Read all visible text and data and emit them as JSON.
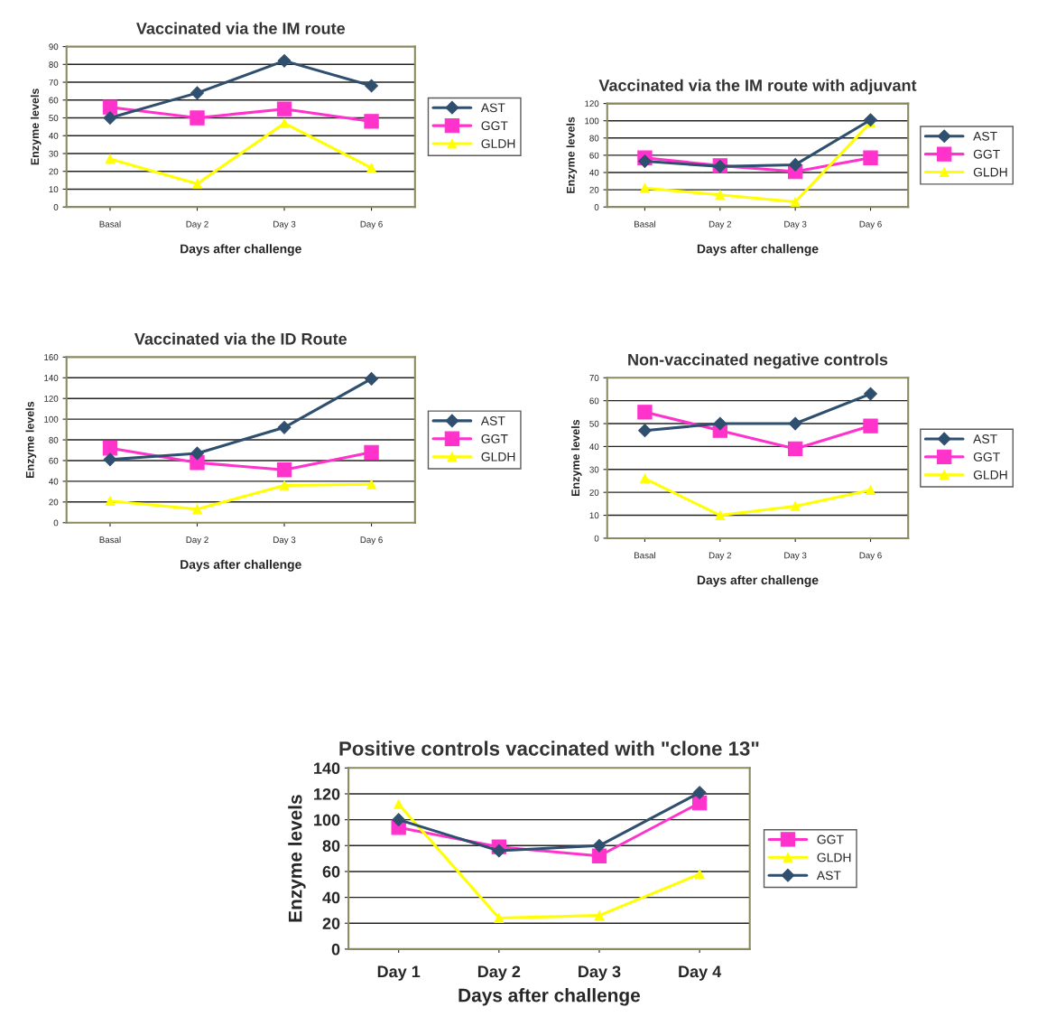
{
  "chart_data": [
    {
      "type": "line",
      "title": "Vaccinated via the IM route",
      "xlabel": "Days after challenge",
      "ylabel": "Enzyme levels",
      "categories": [
        "Basal",
        "Day 2",
        "Day 3",
        "Day 6"
      ],
      "ylim": [
        0,
        90
      ],
      "yticks": [
        0,
        10,
        20,
        30,
        40,
        50,
        60,
        70,
        80,
        90
      ],
      "grid": "y",
      "legend": "right",
      "series": [
        {
          "name": "AST",
          "color": "#2f4f6f",
          "marker": "diamond",
          "values": [
            50,
            64,
            82,
            68
          ]
        },
        {
          "name": "GGT",
          "color": "#ff33cc",
          "marker": "square",
          "values": [
            56,
            50,
            55,
            48
          ]
        },
        {
          "name": "GLDH",
          "color": "#ffff00",
          "marker": "triangle",
          "values": [
            27,
            13,
            47,
            22
          ]
        }
      ]
    },
    {
      "type": "line",
      "title": "Vaccinated via the IM route with adjuvant",
      "xlabel": "Days after challenge",
      "ylabel": "Enzyme levels",
      "categories": [
        "Basal",
        "Day 2",
        "Day 3",
        "Day 6"
      ],
      "ylim": [
        0,
        120
      ],
      "yticks": [
        0,
        20,
        40,
        60,
        80,
        100,
        120
      ],
      "grid": "y",
      "legend": "right",
      "series": [
        {
          "name": "AST",
          "color": "#2f4f6f",
          "marker": "diamond",
          "values": [
            53,
            47,
            49,
            101
          ]
        },
        {
          "name": "GGT",
          "color": "#ff33cc",
          "marker": "square",
          "values": [
            57,
            48,
            41,
            57
          ]
        },
        {
          "name": "GLDH",
          "color": "#ffff00",
          "marker": "triangle",
          "values": [
            22,
            14,
            6,
            98
          ]
        }
      ]
    },
    {
      "type": "line",
      "title": "Vaccinated via the ID Route",
      "xlabel": "Days after challenge",
      "ylabel": "Enzyme levels",
      "categories": [
        "Basal",
        "Day 2",
        "Day 3",
        "Day 6"
      ],
      "ylim": [
        0,
        160
      ],
      "yticks": [
        0,
        20,
        40,
        60,
        80,
        100,
        120,
        140,
        160
      ],
      "grid": "y",
      "legend": "right",
      "series": [
        {
          "name": "AST",
          "color": "#2f4f6f",
          "marker": "diamond",
          "values": [
            61,
            67,
            92,
            139
          ]
        },
        {
          "name": "GGT",
          "color": "#ff33cc",
          "marker": "square",
          "values": [
            72,
            58,
            51,
            68
          ]
        },
        {
          "name": "GLDH",
          "color": "#ffff00",
          "marker": "triangle",
          "values": [
            21,
            13,
            36,
            37
          ]
        }
      ]
    },
    {
      "type": "line",
      "title": "Non-vaccinated negative controls",
      "xlabel": "Days after challenge",
      "ylabel": "Enzyme levels",
      "categories": [
        "Basal",
        "Day 2",
        "Day 3",
        "Day 6"
      ],
      "ylim": [
        0,
        70
      ],
      "yticks": [
        0,
        10,
        20,
        30,
        40,
        50,
        60,
        70
      ],
      "grid": "y",
      "legend": "right",
      "series": [
        {
          "name": "AST",
          "color": "#2f4f6f",
          "marker": "diamond",
          "values": [
            47,
            50,
            50,
            63
          ]
        },
        {
          "name": "GGT",
          "color": "#ff33cc",
          "marker": "square",
          "values": [
            55,
            47,
            39,
            49
          ]
        },
        {
          "name": "GLDH",
          "color": "#ffff00",
          "marker": "triangle",
          "values": [
            26,
            10,
            14,
            21
          ]
        }
      ]
    },
    {
      "type": "line",
      "title": "Positive controls vaccinated with \"clone 13\"",
      "xlabel": "Days after challenge",
      "ylabel": "Enzyme levels",
      "categories": [
        "Day 1",
        "Day 2",
        "Day 3",
        "Day 4"
      ],
      "ylim": [
        0,
        140
      ],
      "yticks": [
        0,
        20,
        40,
        60,
        80,
        100,
        120,
        140
      ],
      "grid": "y",
      "legend": "right",
      "series": [
        {
          "name": "GGT",
          "color": "#ff33cc",
          "marker": "square",
          "values": [
            94,
            79,
            72,
            113
          ]
        },
        {
          "name": "GLDH",
          "color": "#ffff00",
          "marker": "triangle",
          "values": [
            112,
            24,
            26,
            58
          ]
        },
        {
          "name": "AST",
          "color": "#2f4f6f",
          "marker": "diamond",
          "values": [
            100,
            76,
            80,
            121
          ]
        }
      ]
    }
  ]
}
